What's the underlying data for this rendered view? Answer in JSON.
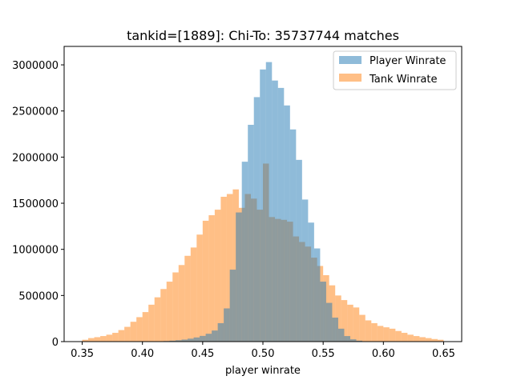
{
  "chart_data": {
    "type": "bar",
    "title": "tankid=[1889]: Chi-To: 35737744 matches",
    "xlabel": "player winrate",
    "ylabel": "",
    "xlim": [
      0.335,
      0.665
    ],
    "ylim": [
      0,
      3200000
    ],
    "xticks": [
      "0.35",
      "0.40",
      "0.45",
      "0.50",
      "0.55",
      "0.60",
      "0.65"
    ],
    "yticks": [
      "0",
      "500000",
      "1000000",
      "1500000",
      "2000000",
      "2500000",
      "3000000"
    ],
    "legend_position": "top-right",
    "bin_start": 0.35,
    "bin_width": 0.005,
    "series": [
      {
        "name": "Player Winrate",
        "color": "#1f77b4",
        "bin_start": 0.4125,
        "values": [
          3000,
          6000,
          10000,
          15000,
          22000,
          32000,
          45000,
          62000,
          85000,
          120000,
          200000,
          360000,
          780000,
          1400000,
          1950000,
          2350000,
          2650000,
          2950000,
          3030000,
          2830000,
          2750000,
          2560000,
          2300000,
          1970000,
          1540000,
          1290000,
          1010000,
          650000,
          420000,
          260000,
          140000,
          60000,
          25000,
          10000,
          3000
        ]
      },
      {
        "name": "Tank Winrate",
        "color": "#ff7f0e",
        "bin_start": 0.35,
        "values": [
          20000,
          38000,
          48000,
          60000,
          75000,
          95000,
          125000,
          160000,
          215000,
          265000,
          320000,
          400000,
          480000,
          570000,
          650000,
          750000,
          830000,
          930000,
          1020000,
          1160000,
          1310000,
          1370000,
          1430000,
          1570000,
          1600000,
          1650000,
          1450000,
          1600000,
          1550000,
          1430000,
          1930000,
          1350000,
          1330000,
          1320000,
          1300000,
          1140000,
          1080000,
          1030000,
          910000,
          820000,
          720000,
          610000,
          500000,
          450000,
          400000,
          370000,
          290000,
          230000,
          200000,
          170000,
          155000,
          140000,
          115000,
          95000,
          75000,
          60000,
          48000,
          38000,
          28000,
          20000
        ]
      }
    ]
  }
}
